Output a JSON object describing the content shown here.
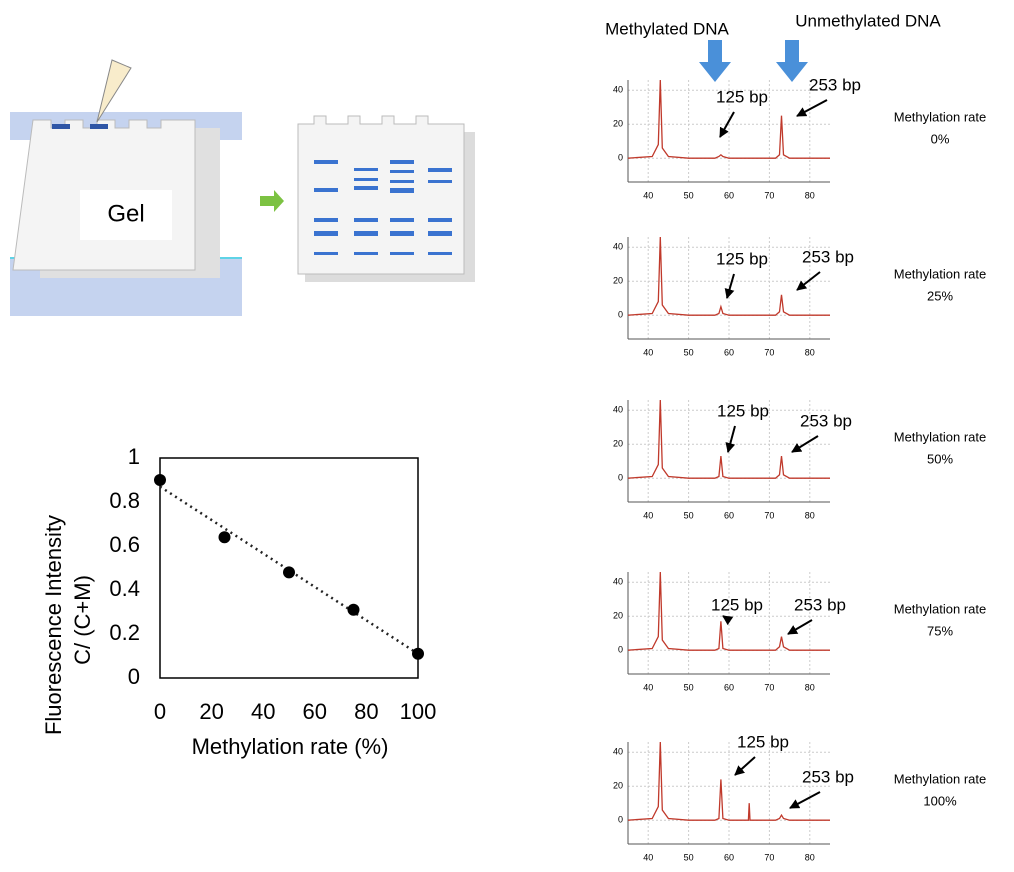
{
  "diagram": {
    "gel_label": "Gel",
    "methylated_label": "Methylated DNA",
    "unmethylated_label": "Unmethylated DNA"
  },
  "chart_data": [
    {
      "type": "scatter",
      "x_label": "Methylation  rate (%)",
      "y_label": [
        "Fluorescence Intensity",
        "C/ (C+M)"
      ],
      "x": [
        0,
        25,
        50,
        75,
        100
      ],
      "values": [
        0.9,
        0.64,
        0.48,
        0.31,
        0.11
      ],
      "color": "#000000",
      "trendline": {
        "x": [
          0,
          100
        ],
        "values": [
          0.87,
          0.11
        ]
      },
      "xlim": [
        0,
        100
      ],
      "ylim": [
        0,
        1
      ],
      "xticks": [
        0,
        20,
        40,
        60,
        80,
        100
      ],
      "yticks": [
        0,
        0.2,
        0.4,
        0.6,
        0.8,
        1
      ]
    },
    {
      "type": "line",
      "annotations": [
        "125 bp",
        "253 bp"
      ],
      "side_label": [
        "Methylation rate",
        "0%"
      ],
      "color": "#c0392b",
      "x": [
        35,
        41,
        42.5,
        43,
        43.5,
        45,
        50,
        56.5,
        57.5,
        58,
        58.5,
        60,
        70,
        71.5,
        72.5,
        73,
        73.5,
        75,
        85
      ],
      "values": [
        0,
        1,
        8,
        46,
        6,
        1,
        0,
        0,
        1,
        2,
        1,
        0,
        0,
        0,
        2,
        25,
        2,
        0,
        0
      ],
      "xlim": [
        35,
        85
      ],
      "ylim": [
        -14,
        46
      ],
      "xticks": [
        40,
        50,
        60,
        70,
        80
      ],
      "yticks": [
        0,
        20,
        40
      ],
      "grid": true
    },
    {
      "type": "line",
      "annotations": [
        "125 bp",
        "253 bp"
      ],
      "side_label": [
        "Methylation rate",
        "25%"
      ],
      "color": "#c0392b",
      "x": [
        35,
        41,
        42.5,
        43,
        43.5,
        45,
        50,
        56.5,
        57.5,
        58,
        58.5,
        60,
        70,
        71.5,
        72.5,
        73,
        73.5,
        75,
        85
      ],
      "values": [
        0,
        1,
        8,
        46,
        6,
        1,
        0,
        0,
        1,
        5,
        1,
        0,
        0,
        0,
        2,
        12,
        2,
        0,
        0
      ],
      "xlim": [
        35,
        85
      ],
      "ylim": [
        -14,
        46
      ],
      "xticks": [
        40,
        50,
        60,
        70,
        80
      ],
      "yticks": [
        0,
        20,
        40
      ],
      "grid": true
    },
    {
      "type": "line",
      "annotations": [
        "125 bp",
        "253 bp"
      ],
      "side_label": [
        "Methylation rate",
        "50%"
      ],
      "color": "#c0392b",
      "x": [
        35,
        41,
        42.5,
        43,
        43.5,
        45,
        50,
        56.5,
        57.5,
        58,
        58.5,
        60,
        70,
        71.5,
        72.5,
        73,
        73.5,
        75,
        85
      ],
      "values": [
        0,
        1,
        8,
        46,
        6,
        1,
        0,
        0,
        1,
        13,
        1,
        0,
        0,
        0,
        2,
        13,
        2,
        0,
        0
      ],
      "xlim": [
        35,
        85
      ],
      "ylim": [
        -14,
        46
      ],
      "xticks": [
        40,
        50,
        60,
        70,
        80
      ],
      "yticks": [
        0,
        20,
        40
      ],
      "grid": true
    },
    {
      "type": "line",
      "annotations": [
        "125 bp",
        "253 bp"
      ],
      "side_label": [
        "Methylation rate",
        "75%"
      ],
      "color": "#c0392b",
      "x": [
        35,
        41,
        42.5,
        43,
        43.5,
        45,
        50,
        56.5,
        57.5,
        58,
        58.5,
        60,
        70,
        71.5,
        72.5,
        73,
        73.5,
        75,
        85
      ],
      "values": [
        0,
        1,
        8,
        46,
        6,
        1,
        0,
        0,
        1,
        17,
        1,
        0,
        0,
        0,
        2,
        8,
        2,
        0,
        0
      ],
      "xlim": [
        35,
        85
      ],
      "ylim": [
        -14,
        46
      ],
      "xticks": [
        40,
        50,
        60,
        70,
        80
      ],
      "yticks": [
        0,
        20,
        40
      ],
      "grid": true
    },
    {
      "type": "line",
      "annotations": [
        "125 bp",
        "253 bp"
      ],
      "side_label": [
        "Methylation rate",
        "100%"
      ],
      "color": "#c0392b",
      "x": [
        35,
        41,
        42.5,
        43,
        43.5,
        45,
        50,
        56.5,
        57.5,
        58,
        58.5,
        60,
        64.8,
        65,
        65.2,
        70,
        71.5,
        72.5,
        73,
        73.5,
        75,
        85
      ],
      "values": [
        0,
        1,
        8,
        46,
        6,
        1,
        0,
        0,
        1,
        24,
        1,
        0,
        0,
        10,
        0,
        0,
        0,
        1,
        3,
        1,
        0,
        0
      ],
      "xlim": [
        35,
        85
      ],
      "ylim": [
        -14,
        46
      ],
      "xticks": [
        40,
        50,
        60,
        70,
        80
      ],
      "yticks": [
        0,
        20,
        40
      ],
      "grid": true
    }
  ]
}
